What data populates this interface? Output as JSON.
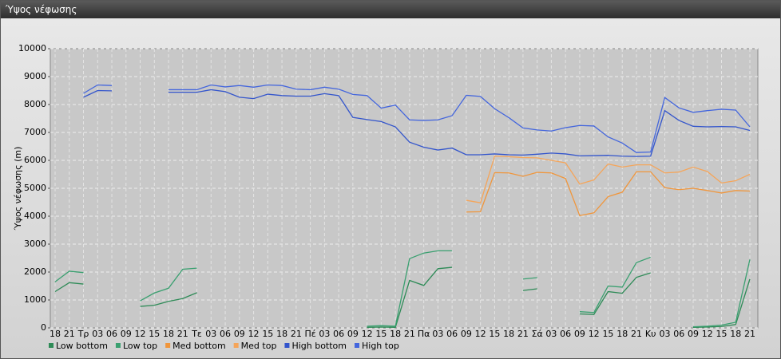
{
  "chart_data": {
    "type": "line",
    "title": "Ύψος νέφωσης",
    "y_label": "Ύψος νέφωσης (m)",
    "categories": [
      "18",
      "21",
      "Τρ",
      "03",
      "06",
      "09",
      "12",
      "15",
      "18",
      "21",
      "Τε",
      "03",
      "06",
      "09",
      "12",
      "15",
      "18",
      "21",
      "Πέ",
      "03",
      "06",
      "09",
      "12",
      "15",
      "18",
      "21",
      "Πα",
      "03",
      "06",
      "09",
      "12",
      "15",
      "18",
      "21",
      "Σά",
      "03",
      "06",
      "09",
      "12",
      "15",
      "18",
      "21",
      "Κυ",
      "03",
      "06",
      "09",
      "12",
      "15",
      "18",
      "21"
    ],
    "ylim": [
      0,
      10000
    ],
    "yticks": [
      0,
      1000,
      2000,
      3000,
      4000,
      5000,
      6000,
      7000,
      8000,
      9000,
      10000
    ],
    "grid": true,
    "legend": "bottom",
    "series": [
      {
        "name": "Low bottom",
        "color": "#2e8b57",
        "values": [
          1300,
          1620,
          1570,
          null,
          null,
          null,
          770,
          810,
          950,
          1050,
          1260,
          null,
          null,
          null,
          null,
          null,
          null,
          null,
          null,
          null,
          null,
          null,
          20,
          30,
          20,
          1700,
          1520,
          2120,
          2170,
          null,
          null,
          null,
          null,
          1340,
          1400,
          null,
          null,
          500,
          480,
          1300,
          1240,
          1810,
          1970,
          null,
          null,
          20,
          30,
          50,
          120,
          1750
        ]
      },
      {
        "name": "Low top",
        "color": "#3aa070",
        "values": [
          1650,
          2030,
          1980,
          null,
          null,
          null,
          970,
          1250,
          1420,
          2100,
          2140,
          null,
          null,
          null,
          null,
          null,
          null,
          null,
          null,
          null,
          null,
          null,
          60,
          80,
          60,
          2480,
          2680,
          2760,
          2760,
          null,
          null,
          null,
          null,
          1750,
          1800,
          null,
          null,
          580,
          550,
          1500,
          1460,
          2340,
          2530,
          null,
          null,
          40,
          60,
          100,
          200,
          2450
        ]
      },
      {
        "name": "Med bottom",
        "color": "#f0963c",
        "values": [
          null,
          null,
          null,
          null,
          null,
          null,
          null,
          null,
          null,
          null,
          null,
          null,
          null,
          null,
          null,
          null,
          null,
          null,
          null,
          null,
          null,
          null,
          null,
          null,
          null,
          null,
          null,
          null,
          null,
          4150,
          4160,
          5560,
          5550,
          5430,
          5570,
          5550,
          5350,
          4020,
          4120,
          4700,
          4860,
          5590,
          5590,
          5020,
          4950,
          5000,
          4920,
          4830,
          4920,
          4900
        ]
      },
      {
        "name": "Med top",
        "color": "#f5a55a",
        "values": [
          null,
          null,
          null,
          null,
          null,
          null,
          null,
          null,
          null,
          null,
          null,
          null,
          null,
          null,
          null,
          null,
          null,
          null,
          null,
          null,
          null,
          null,
          null,
          null,
          null,
          null,
          null,
          null,
          null,
          4570,
          4480,
          6150,
          6130,
          6100,
          6090,
          6000,
          5910,
          5150,
          5300,
          5870,
          5760,
          5840,
          5840,
          5550,
          5580,
          5760,
          5600,
          5190,
          5270,
          5500
        ]
      },
      {
        "name": "High bottom",
        "color": "#3355cc",
        "values": [
          null,
          null,
          8260,
          8500,
          8490,
          null,
          null,
          null,
          8440,
          8440,
          8440,
          8530,
          8460,
          8260,
          8210,
          8370,
          8320,
          8300,
          8300,
          8390,
          8320,
          7540,
          7460,
          7390,
          7200,
          6650,
          6470,
          6370,
          6440,
          6200,
          6200,
          6230,
          6200,
          6190,
          6220,
          6260,
          6230,
          6160,
          6170,
          6180,
          6150,
          6140,
          6150,
          7780,
          7430,
          7220,
          7200,
          7210,
          7200,
          7070
        ]
      },
      {
        "name": "High top",
        "color": "#4466dd",
        "values": [
          null,
          null,
          8400,
          8700,
          8680,
          null,
          null,
          null,
          8530,
          8530,
          8530,
          8700,
          8630,
          8680,
          8620,
          8700,
          8680,
          8550,
          8530,
          8620,
          8550,
          8360,
          8320,
          7870,
          7980,
          7450,
          7430,
          7450,
          7600,
          8330,
          8290,
          7850,
          7530,
          7160,
          7090,
          7050,
          7170,
          7250,
          7230,
          6840,
          6620,
          6280,
          6300,
          8250,
          7880,
          7720,
          7780,
          7830,
          7800,
          7200
        ]
      }
    ]
  }
}
